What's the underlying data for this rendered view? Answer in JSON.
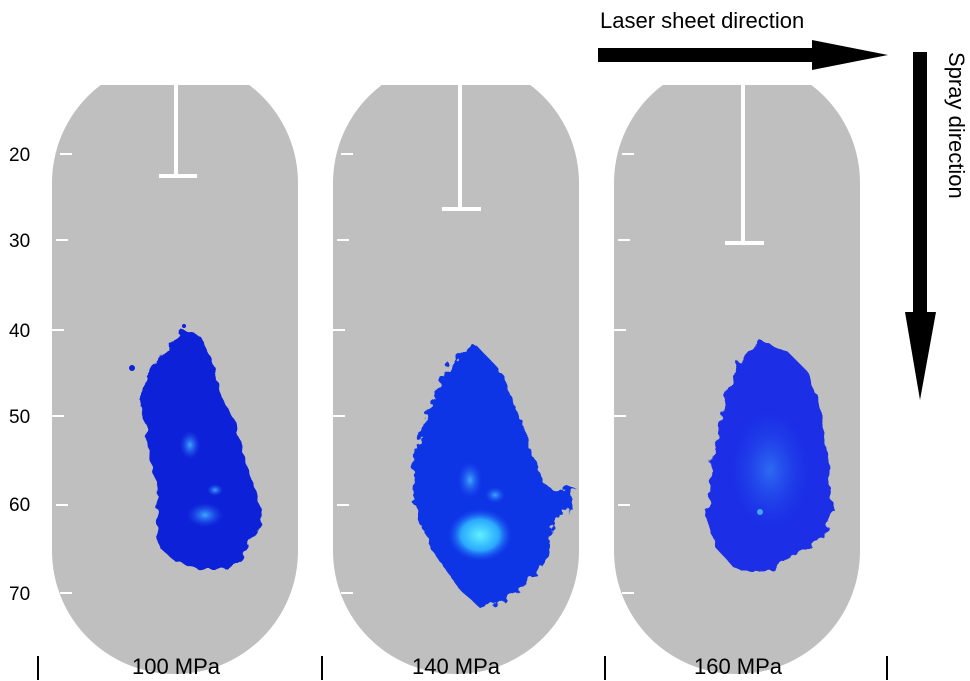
{
  "figure": {
    "laser_label": "Laser sheet direction",
    "spray_label": "Spray direction",
    "y_axis": {
      "ticks": [
        "20",
        "30",
        "40",
        "50",
        "60",
        "70"
      ]
    },
    "panels": [
      {
        "label": "100 MPa",
        "nozzle_tip_depth": 22
      },
      {
        "label": "140 MPa",
        "nozzle_tip_depth": 26.5
      },
      {
        "label": "160 MPa",
        "nozzle_tip_depth": 30.5
      }
    ],
    "colors": {
      "window": "#bfbfbf",
      "spray_dark": "#0a1fd6",
      "spray_mid": "#1f55f0",
      "spray_bright": "#38d2ff",
      "arrow": "#000000",
      "injector": "#ffffff"
    }
  }
}
